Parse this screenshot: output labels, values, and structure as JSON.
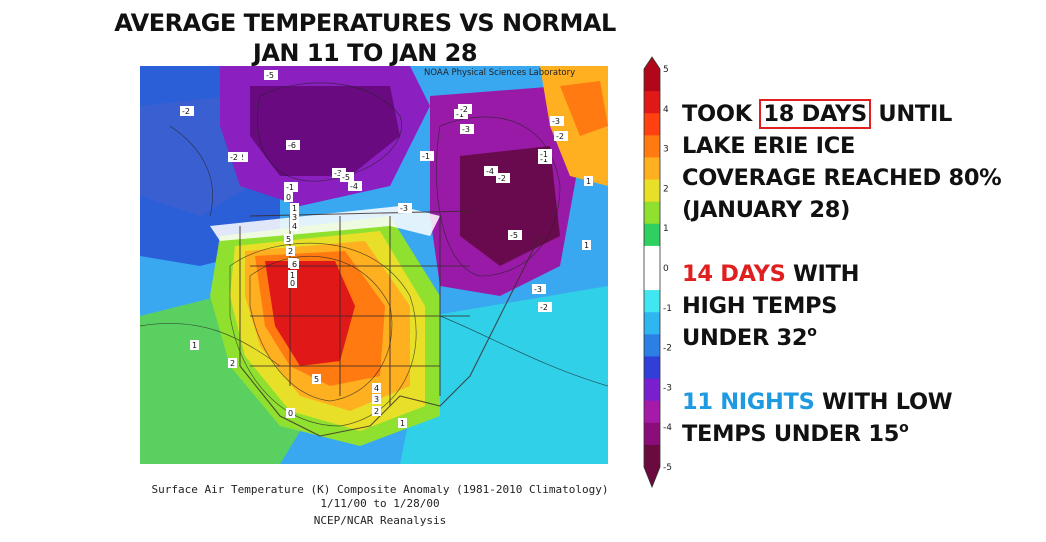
{
  "title": {
    "line1": "AVERAGE TEMPERATURES VS NORMAL",
    "line2": "JAN 11 TO JAN 28"
  },
  "map": {
    "credit": "NOAA Physical Sciences Laboratory",
    "contour_labels": [
      "-2",
      "-5",
      "-2",
      "-6",
      "-3",
      "-1",
      "-1",
      "-5",
      "-4",
      "-3",
      "-2",
      "-1",
      "-2",
      "-3",
      "-3",
      "-2",
      "-1",
      "-4",
      "-1",
      "0",
      "-5",
      "1",
      "3",
      "4",
      "5",
      "2",
      "3",
      "1",
      "6",
      "1",
      "2",
      "5",
      "4",
      "3",
      "2",
      "1",
      "-3",
      "-2",
      "-2",
      "0",
      "1",
      "1",
      "0"
    ],
    "caption_line1": "Surface Air Temperature (K) Composite Anomaly (1981-2010 Climatology)",
    "caption_line2": "1/11/00  to 1/28/00",
    "caption_line3": "NCEP/NCAR Reanalysis"
  },
  "legend": {
    "ticks": [
      "5",
      "4",
      "3",
      "2",
      "1",
      "0",
      "-1",
      "-2",
      "-3",
      "-4",
      "-5"
    ],
    "colors": [
      "#6a0a3e",
      "#8b0d7a",
      "#a51aa8",
      "#7a1fd0",
      "#2f3fd8",
      "#2d7fe6",
      "#2fb6f0",
      "#40e6f0",
      "#ffffff",
      "#ffffff",
      "#2fd060",
      "#90e030",
      "#e8e028",
      "#ffb020",
      "#ff7a10",
      "#ff4010",
      "#e01818",
      "#b00818"
    ]
  },
  "notes": {
    "n1_pre": "TOOK ",
    "n1_highlight": "18 DAYS",
    "n1_post": " UNTIL",
    "n1_line2": "LAKE ERIE ICE",
    "n1_line3": "COVERAGE REACHED 80%",
    "n1_line4": "(JANUARY 28)",
    "n2_highlight": "14 DAYS",
    "n2_post": " WITH",
    "n2_line2": "HIGH TEMPS",
    "n2_line3": "UNDER 32",
    "n2_sup": "o",
    "n3_highlight": "11 NIGHTS",
    "n3_post": " WITH LOW",
    "n3_line2": "TEMPS  UNDER 15",
    "n3_sup": "o"
  }
}
